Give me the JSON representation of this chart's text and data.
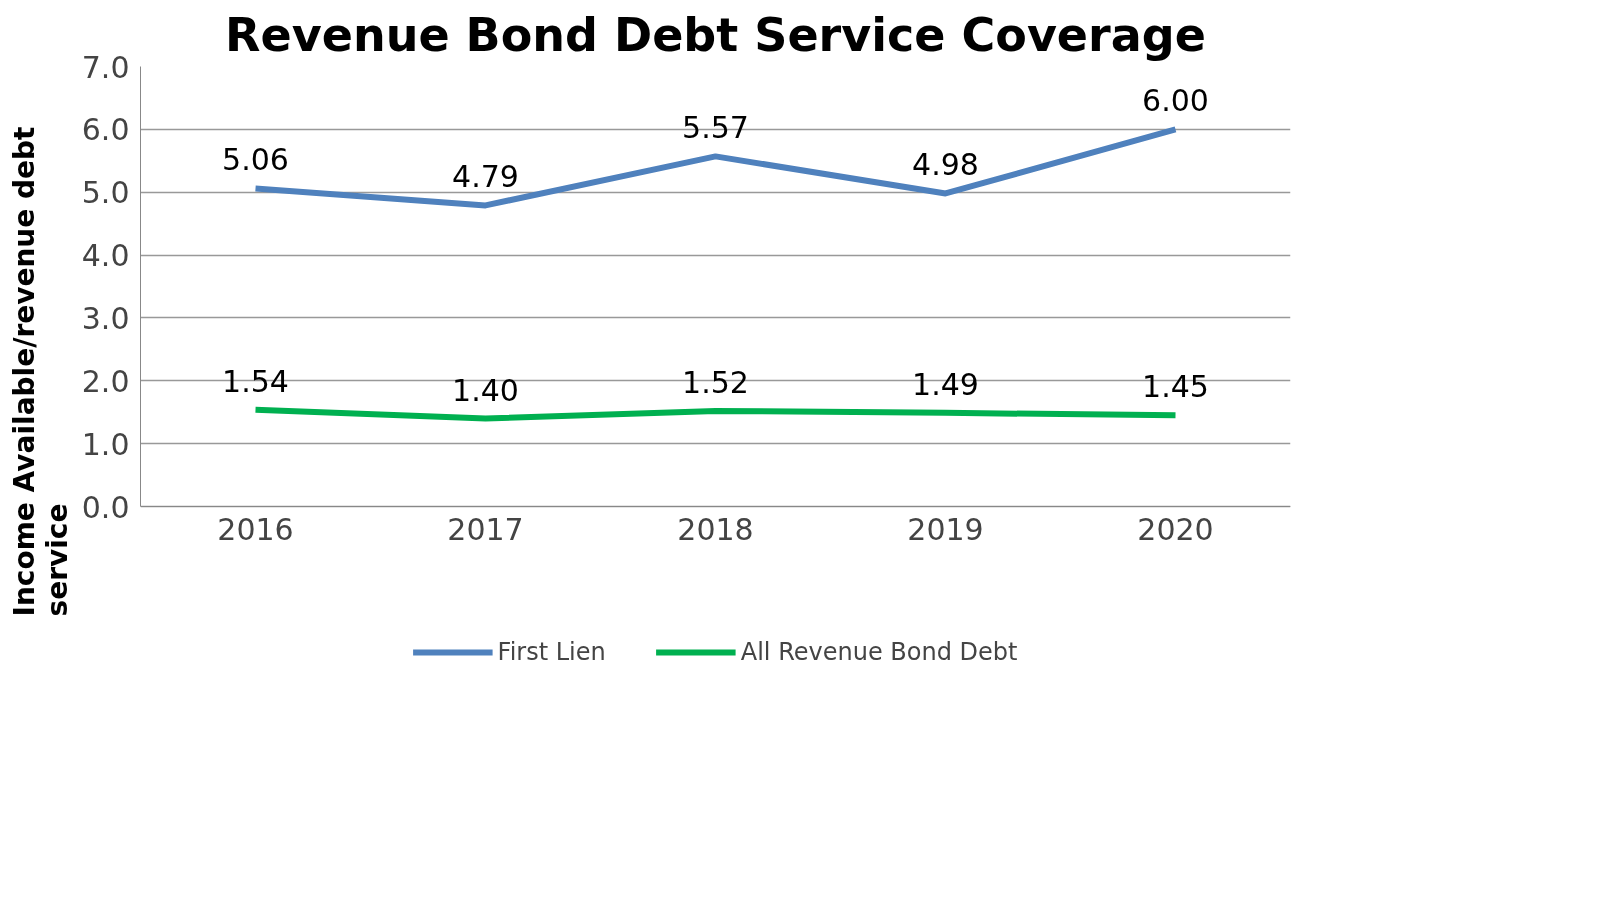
{
  "chart_data": {
    "type": "line",
    "title": "Revenue Bond Debt Service Coverage",
    "ylabel": "Income Available/revenue debt\nservice",
    "categories": [
      "2016",
      "2017",
      "2018",
      "2019",
      "2020"
    ],
    "series": [
      {
        "name": "First Lien",
        "color": "#4f81bd",
        "values": [
          5.06,
          4.79,
          5.57,
          4.98,
          6.0
        ],
        "value_labels": [
          "5.06",
          "4.79",
          "5.57",
          "4.98",
          "6.00"
        ]
      },
      {
        "name": "All Revenue Bond Debt",
        "color": "#00b050",
        "values": [
          1.54,
          1.4,
          1.52,
          1.49,
          1.45
        ],
        "value_labels": [
          "1.54",
          "1.40",
          "1.52",
          "1.49",
          "1.45"
        ]
      }
    ],
    "ylim": [
      0,
      7
    ],
    "yticks": [
      {
        "value": 0,
        "label": "0.0"
      },
      {
        "value": 1,
        "label": "1.0"
      },
      {
        "value": 2,
        "label": "2.0"
      },
      {
        "value": 3,
        "label": "3.0"
      },
      {
        "value": 4,
        "label": "4.0"
      },
      {
        "value": 5,
        "label": "5.0"
      },
      {
        "value": 6,
        "label": "6.0"
      },
      {
        "value": 7,
        "label": "7.0"
      }
    ],
    "grid": "y",
    "legend": "bottom",
    "marker": "none",
    "line_style": "solid"
  }
}
